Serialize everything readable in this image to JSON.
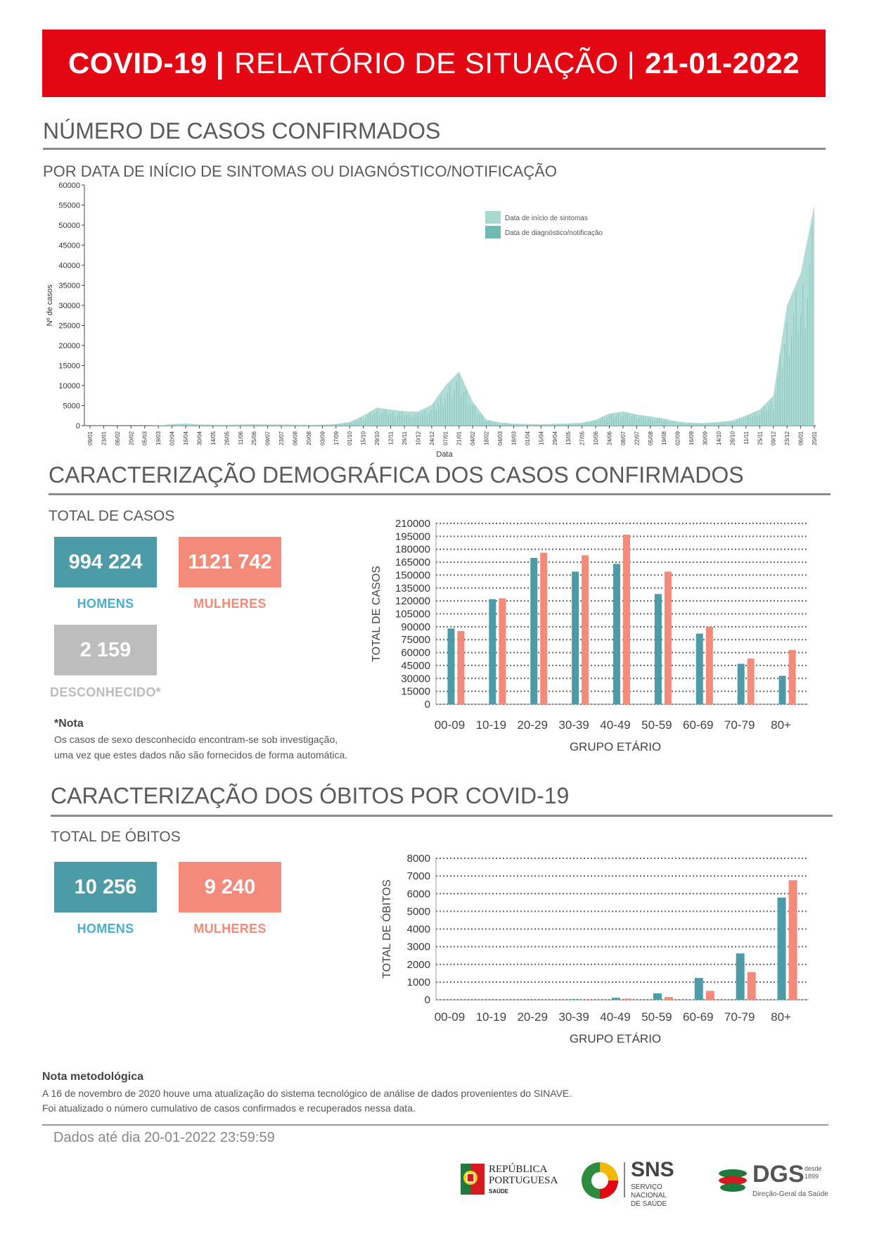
{
  "header": {
    "part1": "COVID-19 |",
    "part2": "RELATÓRIO DE SITUAÇÃO |",
    "part3": "21-01-2022"
  },
  "section_cases": {
    "title": "NÚMERO DE CASOS CONFIRMADOS",
    "subtitle": "POR DATA DE INÍCIO DE SINTOMAS OU DIAGNÓSTICO/NOTIFICAÇÃO"
  },
  "section_demo": {
    "title": "CARACTERIZAÇÃO DEMOGRÁFICA DOS CASOS CONFIRMADOS",
    "total_label": "TOTAL DE CASOS",
    "men_value": "994 224",
    "women_value": "1121 742",
    "unknown_value": "2 159",
    "men_label": "HOMENS",
    "women_label": "MULHERES",
    "unknown_label": "DESCONHECIDO*",
    "note_title": "*Nota",
    "note_line1": "Os casos de sexo desconhecido encontram-se sob investigação,",
    "note_line2": "uma vez que estes dados não são fornecidos de forma automática."
  },
  "section_deaths": {
    "title": "CARACTERIZAÇÃO DOS ÓBITOS POR COVID-19",
    "total_label": "TOTAL DE ÓBITOS",
    "men_value": "10 256",
    "women_value": "9 240",
    "men_label": "HOMENS",
    "women_label": "MULHERES"
  },
  "methodology": {
    "title": "Nota metodológica",
    "line1": "A 16 de novembro de 2020 houve uma atualização do sistema tecnológico de análise de dados provenientes do SINAVE.",
    "line2": "Foi atualizado o número cumulativo de casos confirmados e recuperados nessa data."
  },
  "footer": {
    "data_until": "Dados até dia 20-01-2022 23:59:59",
    "logo_rp_line1": "REPÚBLICA",
    "logo_rp_line2": "PORTUGUESA",
    "logo_rp_line3": "SAÚDE",
    "logo_sns": "SNS",
    "logo_sns_sub1": "SERVIÇO NACIONAL",
    "logo_sns_sub2": "DE SAÚDE",
    "logo_dgs": "DGS",
    "logo_dgs_since1": "desde",
    "logo_dgs_since2": "1899",
    "logo_dgs_sub": "Direção-Geral da Saúde"
  },
  "colors": {
    "red": "#e30613",
    "teal": "#4d9ba6",
    "salmon": "#f38a7a",
    "light_teal": "#a8d8d2",
    "mid_teal": "#6dbbb1"
  },
  "chart_data": [
    {
      "type": "area",
      "ylabel": "Nº de casos",
      "xlabel": "Data",
      "ylim": [
        0,
        60000
      ],
      "yticks": [
        0,
        5000,
        10000,
        15000,
        20000,
        25000,
        30000,
        35000,
        40000,
        45000,
        50000,
        55000,
        60000
      ],
      "xticks": [
        "09/01",
        "23/01",
        "06/02",
        "20/02",
        "05/03",
        "19/03",
        "02/04",
        "16/04",
        "30/04",
        "14/05",
        "28/05",
        "11/06",
        "25/06",
        "09/07",
        "23/07",
        "06/08",
        "20/08",
        "03/09",
        "17/09",
        "01/10",
        "15/10",
        "29/10",
        "12/11",
        "26/11",
        "10/12",
        "24/12",
        "07/01",
        "21/01",
        "04/02",
        "18/02",
        "04/03",
        "18/03",
        "01/04",
        "15/04",
        "29/04",
        "13/05",
        "27/05",
        "10/06",
        "24/06",
        "08/07",
        "22/07",
        "05/08",
        "19/08",
        "02/09",
        "16/09",
        "30/09",
        "14/10",
        "28/10",
        "11/11",
        "25/11",
        "09/12",
        "23/12",
        "06/01",
        "20/01"
      ],
      "series": [
        {
          "name": "Data de início de sintomas",
          "color": "#a8d8d2"
        },
        {
          "name": "Data de diagnóstico/notificação",
          "color": "#6dbbb1"
        }
      ],
      "values": [
        0,
        0,
        0,
        0,
        0,
        50,
        400,
        500,
        300,
        250,
        200,
        300,
        350,
        300,
        300,
        250,
        200,
        250,
        400,
        900,
        2500,
        4500,
        4000,
        3600,
        3500,
        5200,
        10000,
        13500,
        6000,
        1500,
        800,
        500,
        400,
        350,
        450,
        550,
        700,
        1500,
        3000,
        3500,
        2800,
        2300,
        1800,
        1000,
        700,
        650,
        900,
        1300,
        2500,
        4000,
        7500,
        30000,
        38000,
        55000
      ]
    },
    {
      "type": "bar",
      "title": "",
      "xlabel": "GRUPO ETÁRIO",
      "ylabel": "TOTAL DE CASOS",
      "ylim": [
        0,
        210000
      ],
      "yticks": [
        0,
        15000,
        30000,
        45000,
        60000,
        75000,
        90000,
        105000,
        120000,
        135000,
        150000,
        165000,
        180000,
        195000,
        210000
      ],
      "categories": [
        "00-09",
        "10-19",
        "20-29",
        "30-39",
        "40-49",
        "50-59",
        "60-69",
        "70-79",
        "80+"
      ],
      "series": [
        {
          "name": "Homens",
          "color": "#4d9ba6",
          "values": [
            88000,
            122000,
            170000,
            154000,
            163000,
            128000,
            82000,
            47000,
            33000
          ]
        },
        {
          "name": "Mulheres",
          "color": "#f38a7a",
          "values": [
            85000,
            123000,
            176000,
            173000,
            197000,
            154000,
            90000,
            53000,
            63000
          ]
        }
      ]
    },
    {
      "type": "bar",
      "title": "",
      "xlabel": "GRUPO ETÁRIO",
      "ylabel": "TOTAL DE ÓBITOS",
      "ylim": [
        0,
        8000
      ],
      "yticks": [
        0,
        1000,
        2000,
        3000,
        4000,
        5000,
        6000,
        7000,
        8000
      ],
      "categories": [
        "00-09",
        "10-19",
        "20-29",
        "30-39",
        "40-49",
        "50-59",
        "60-69",
        "70-79",
        "80+"
      ],
      "series": [
        {
          "name": "Homens",
          "color": "#4d9ba6",
          "values": [
            2,
            4,
            10,
            30,
            110,
            360,
            1230,
            2620,
            5780
          ]
        },
        {
          "name": "Mulheres",
          "color": "#f38a7a",
          "values": [
            2,
            3,
            8,
            20,
            60,
            150,
            500,
            1560,
            6760
          ]
        }
      ]
    }
  ]
}
